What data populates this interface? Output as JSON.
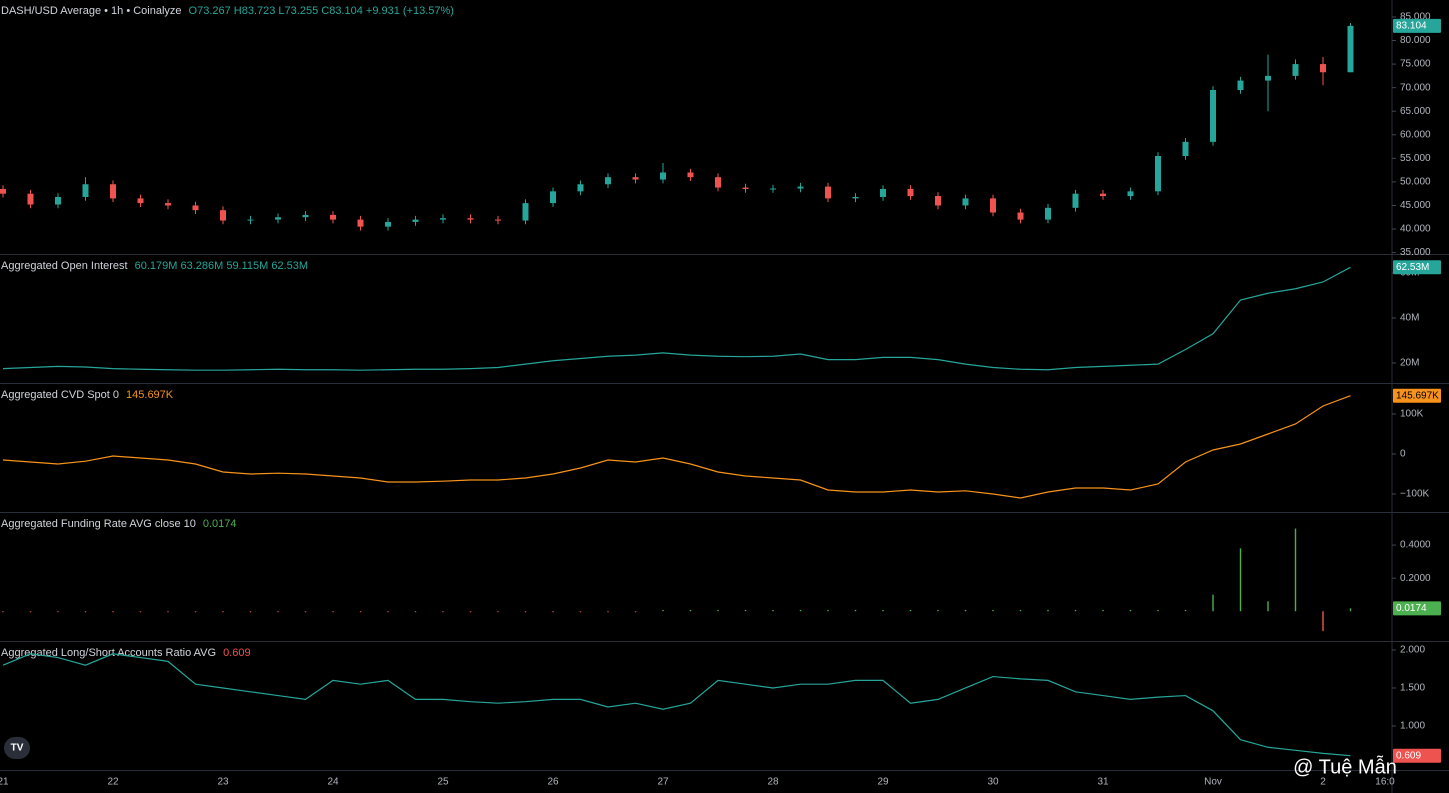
{
  "x_axis": {
    "labels": [
      "21",
      "22",
      "23",
      "24",
      "25",
      "26",
      "27",
      "28",
      "29",
      "30",
      "31",
      "Nov",
      "2",
      "16:0"
    ]
  },
  "watermark": "@ Tuệ Mẫn",
  "chart_data": [
    {
      "type": "candlestick",
      "title": "DASH/USD Average • 1h • Coinalyze",
      "legend_values": "O73.267 H83.723 L73.255 C83.104 +9.931 (+13.57%)",
      "last_label": "83.104",
      "up_color": "#26a69a",
      "down_color": "#ef5350",
      "ylim": [
        34.7,
        88.6
      ],
      "yticks": [
        {
          "value": 35,
          "label": "35.000"
        },
        {
          "value": 40,
          "label": "40.000"
        },
        {
          "value": 45,
          "label": "45.000"
        },
        {
          "value": 50,
          "label": "50.000"
        },
        {
          "value": 55,
          "label": "55.000"
        },
        {
          "value": 60,
          "label": "60.000"
        },
        {
          "value": 65,
          "label": "65.000"
        },
        {
          "value": 70,
          "label": "70.000"
        },
        {
          "value": 75,
          "label": "75.000"
        },
        {
          "value": 80,
          "label": "80.000"
        },
        {
          "value": 85,
          "label": "85.000"
        }
      ],
      "open": [
        48.5,
        47.5,
        45.2,
        46.8,
        49.5,
        46.5,
        45.5,
        45.0,
        44.0,
        41.8,
        42.0,
        42.5,
        43.0,
        42.0,
        40.5,
        41.5,
        42.0,
        42.3,
        42.0,
        41.8,
        45.5,
        48.0,
        49.5,
        51.0,
        50.5,
        52.0,
        51.0,
        48.8,
        48.5,
        48.6,
        49.0,
        46.5,
        46.8,
        48.5,
        47.0,
        45.0,
        46.5,
        43.5,
        42.0,
        44.5,
        47.5,
        47.0,
        48.0,
        55.5,
        58.5,
        69.5,
        71.5,
        72.5,
        75.0,
        73.267
      ],
      "high": [
        49.3,
        48.3,
        47.6,
        51.0,
        50.3,
        47.3,
        46.3,
        45.8,
        44.8,
        42.8,
        43.3,
        43.8,
        43.8,
        42.8,
        42.3,
        42.8,
        43.1,
        43.1,
        42.8,
        46.3,
        48.8,
        50.3,
        51.8,
        51.8,
        54.0,
        52.8,
        51.8,
        49.6,
        49.4,
        49.8,
        49.8,
        47.6,
        49.3,
        49.3,
        47.8,
        47.3,
        47.3,
        44.3,
        45.3,
        48.3,
        48.3,
        48.8,
        56.3,
        59.3,
        70.3,
        72.3,
        77.0,
        76.0,
        76.5,
        83.723
      ],
      "low": [
        46.7,
        44.4,
        44.4,
        46.0,
        45.7,
        44.7,
        44.2,
        43.2,
        41.0,
        41.0,
        41.2,
        41.7,
        41.2,
        39.7,
        39.7,
        40.7,
        41.2,
        41.2,
        41.0,
        41.0,
        44.7,
        47.2,
        48.7,
        49.7,
        49.7,
        50.2,
        48.0,
        47.7,
        47.7,
        47.8,
        45.7,
        45.7,
        46.0,
        46.2,
        44.2,
        44.2,
        42.7,
        41.2,
        41.2,
        43.7,
        46.2,
        46.2,
        47.2,
        54.7,
        57.7,
        68.7,
        65.0,
        71.7,
        70.5,
        73.255
      ],
      "close": [
        47.5,
        45.2,
        46.8,
        49.5,
        46.5,
        45.5,
        45.0,
        44.0,
        41.8,
        42.0,
        42.5,
        43.0,
        42.0,
        40.5,
        41.5,
        42.0,
        42.3,
        42.0,
        41.8,
        45.5,
        48.0,
        49.5,
        51.0,
        50.5,
        52.0,
        51.0,
        48.8,
        48.5,
        48.6,
        49.0,
        46.5,
        46.8,
        48.5,
        47.0,
        45.0,
        46.5,
        43.5,
        42.0,
        44.5,
        47.5,
        47.0,
        48.0,
        55.5,
        58.5,
        69.5,
        71.5,
        72.5,
        75.0,
        73.267,
        83.104
      ]
    },
    {
      "type": "line",
      "title": "Aggregated Open Interest",
      "legend_values": "60.179M 63.286M 59.115M 62.53M",
      "last_label": "62.53M",
      "color": "#26a69a",
      "ylim": [
        11.1,
        68
      ],
      "yticks": [
        {
          "value": 20,
          "label": "20M"
        },
        {
          "value": 40,
          "label": "40M"
        },
        {
          "value": 60,
          "label": "60M"
        }
      ],
      "values": [
        17.5,
        18.0,
        18.5,
        18.2,
        17.5,
        17.2,
        17.0,
        16.8,
        16.8,
        17.0,
        17.2,
        17.0,
        17.0,
        16.8,
        17.0,
        17.2,
        17.2,
        17.5,
        18.0,
        19.5,
        21.0,
        22.0,
        23.0,
        23.5,
        24.5,
        23.5,
        23.0,
        22.8,
        23.0,
        24.0,
        21.5,
        21.5,
        22.5,
        22.5,
        21.5,
        19.5,
        18.0,
        17.2,
        17.0,
        18.0,
        18.5,
        19.0,
        19.5,
        26.0,
        33.0,
        48.0,
        51.0,
        53.0,
        56.0,
        62.53
      ]
    },
    {
      "type": "line",
      "title": "Aggregated CVD Spot 0",
      "legend_values": "145.697K",
      "last_label": "145.697K",
      "color": "#f7931a",
      "ylim": [
        -145,
        175
      ],
      "yticks": [
        {
          "value": -100,
          "label": "−100K"
        },
        0,
        {
          "value": 100,
          "label": "100K"
        }
      ],
      "values": [
        -15,
        -20,
        -25,
        -18,
        -5,
        -10,
        -15,
        -25,
        -45,
        -50,
        -48,
        -50,
        -55,
        -60,
        -70,
        -70,
        -68,
        -65,
        -65,
        -60,
        -50,
        -35,
        -15,
        -20,
        -10,
        -25,
        -45,
        -55,
        -60,
        -65,
        -90,
        -95,
        -95,
        -90,
        -95,
        -92,
        -100,
        -110,
        -95,
        -85,
        -85,
        -90,
        -75,
        -20,
        10,
        25,
        50,
        75,
        120,
        145.697
      ]
    },
    {
      "type": "bar",
      "title": "Aggregated Funding Rate AVG close 10",
      "legend_values": "0.0174",
      "last_label": "0.0174",
      "up_color": "#4caf50",
      "down_color": "#ef5350",
      "label_color": "#4caf50",
      "ylim": [
        -0.18,
        0.594
      ],
      "yticks": [
        {
          "value": 0.2,
          "label": "0.2000"
        },
        {
          "value": 0.4,
          "label": "0.4000"
        }
      ],
      "values": [
        -0.005,
        -0.005,
        -0.005,
        -0.005,
        -0.005,
        -0.005,
        -0.005,
        -0.005,
        -0.005,
        -0.005,
        -0.005,
        -0.005,
        -0.005,
        -0.005,
        -0.005,
        -0.005,
        -0.005,
        -0.005,
        -0.005,
        -0.005,
        -0.005,
        -0.005,
        -0.005,
        -0.005,
        0.008,
        0.008,
        0.008,
        0.008,
        0.008,
        0.008,
        0.008,
        0.008,
        0.008,
        0.008,
        0.008,
        0.008,
        0.008,
        0.008,
        0.008,
        0.008,
        0.008,
        0.008,
        0.008,
        0.008,
        0.1,
        0.38,
        0.06,
        0.5,
        -0.12,
        0.0174
      ]
    },
    {
      "type": "line",
      "title": "Aggregated Long/Short Accounts Ratio AVG",
      "legend_values": "0.609",
      "last_label": "0.609",
      "color": "#26a69a",
      "label_color": "#ef5350",
      "ylim": [
        0.421,
        2.105
      ],
      "yticks": [
        {
          "value": 1,
          "label": "1.000"
        },
        {
          "value": 1.5,
          "label": "1.500"
        },
        {
          "value": 2,
          "label": "2.000"
        }
      ],
      "values": [
        1.8,
        1.95,
        1.9,
        1.8,
        1.95,
        1.9,
        1.85,
        1.55,
        1.5,
        1.45,
        1.4,
        1.35,
        1.6,
        1.55,
        1.6,
        1.35,
        1.35,
        1.32,
        1.3,
        1.32,
        1.35,
        1.35,
        1.25,
        1.3,
        1.22,
        1.3,
        1.6,
        1.55,
        1.5,
        1.55,
        1.55,
        1.6,
        1.6,
        1.3,
        1.35,
        1.5,
        1.65,
        1.62,
        1.6,
        1.45,
        1.4,
        1.35,
        1.38,
        1.4,
        1.2,
        0.82,
        0.72,
        0.68,
        0.64,
        0.609
      ]
    }
  ]
}
